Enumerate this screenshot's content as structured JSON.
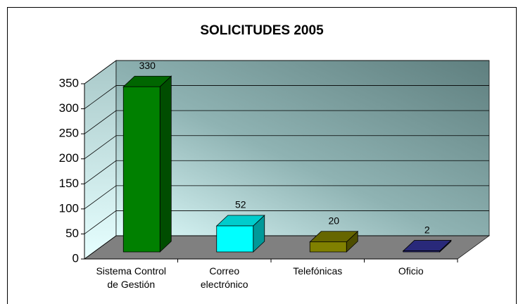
{
  "chart_data": {
    "type": "bar3d",
    "title": "SOLICITUDES 2005",
    "categories": [
      "Sistema Control de Gestión",
      "Correo electrónico",
      "Telefónicas",
      "Oficio"
    ],
    "values": [
      330,
      52,
      20,
      2
    ],
    "colors": [
      "#008000",
      "#00ffff",
      "#808000",
      "#333399"
    ],
    "ylim": [
      0,
      350
    ],
    "yticks": [
      0,
      50,
      100,
      150,
      200,
      250,
      300,
      350
    ],
    "grid": true
  }
}
